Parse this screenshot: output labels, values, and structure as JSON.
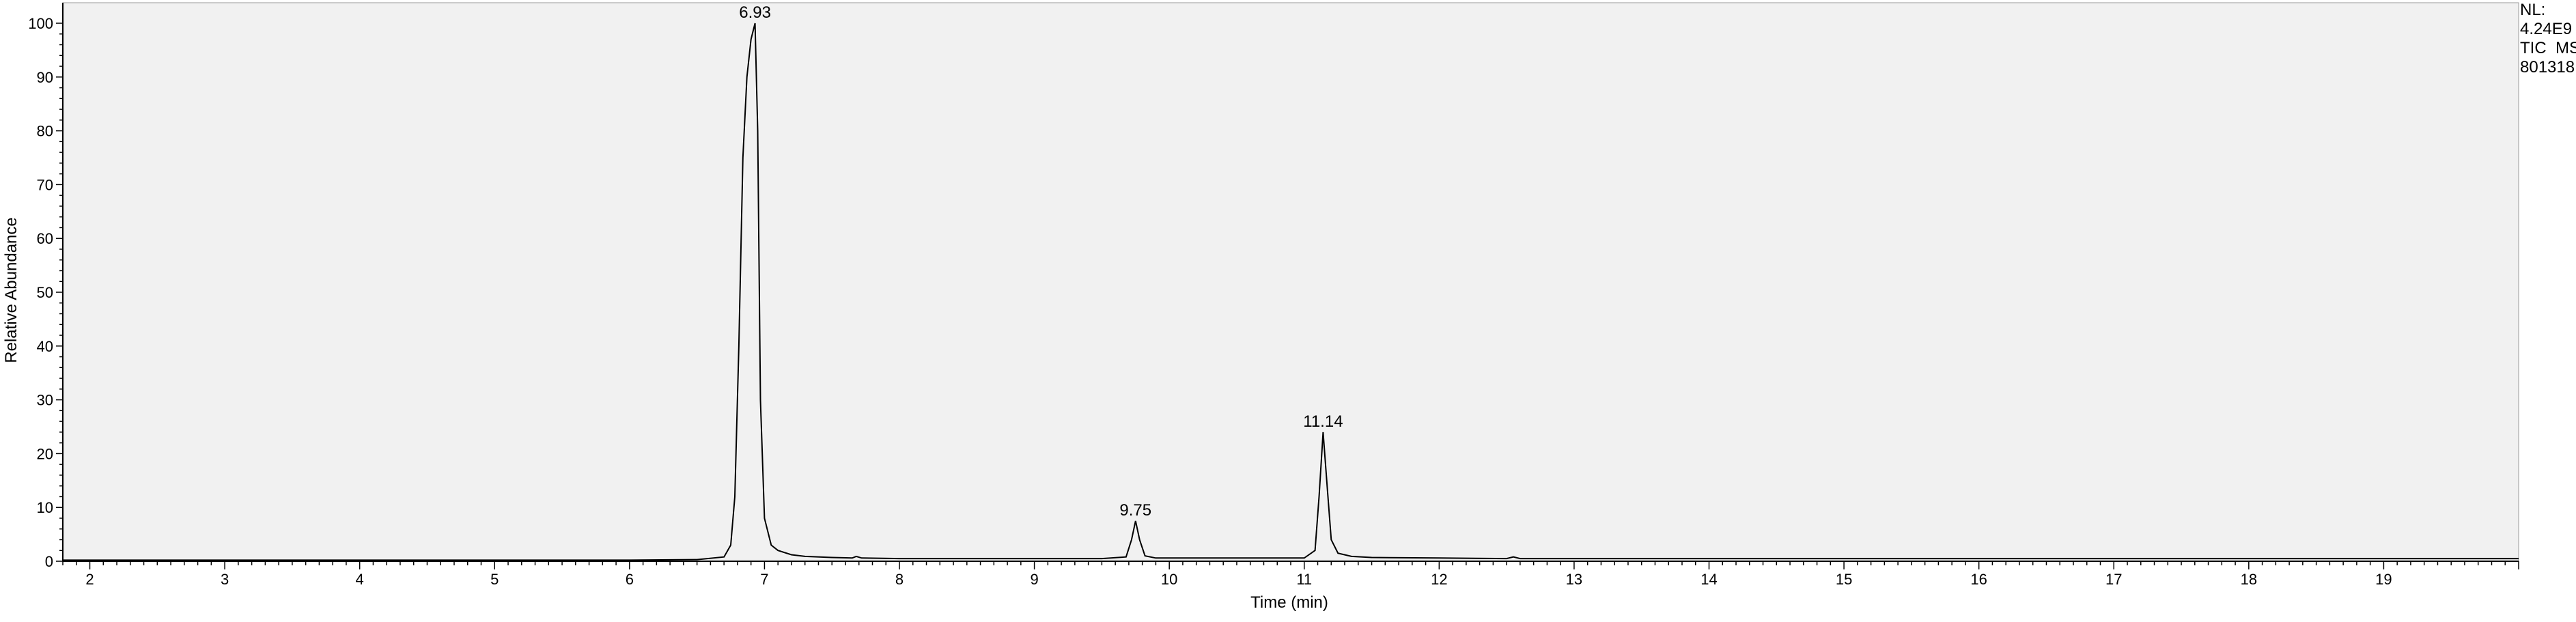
{
  "chart_data": {
    "type": "line",
    "title": "",
    "xlabel": "Time (min)",
    "ylabel": "Relative Abundance",
    "xlim": [
      1.8,
      20.0
    ],
    "ylim": [
      0,
      100
    ],
    "x_ticks": [
      2,
      3,
      4,
      5,
      6,
      7,
      8,
      9,
      10,
      11,
      12,
      13,
      14,
      15,
      16,
      17,
      18,
      19
    ],
    "y_ticks": [
      0,
      10,
      20,
      30,
      40,
      50,
      60,
      70,
      80,
      90,
      100
    ],
    "grid": false,
    "plot_background": "#f1f1f1",
    "line_color": "#000000",
    "info_box": [
      "NL:",
      "4.24E9",
      "TIC  MS",
      "801318"
    ],
    "peaks": [
      {
        "rt": 6.93,
        "label": "6.93",
        "abundance": 100
      },
      {
        "rt": 9.75,
        "label": "9.75",
        "abundance": 7.5
      },
      {
        "rt": 11.14,
        "label": "11.14",
        "abundance": 24
      }
    ],
    "series": [
      {
        "x": [
          1.8,
          3.0,
          4.0,
          5.0,
          6.0,
          6.5,
          6.7,
          6.75,
          6.78,
          6.81,
          6.84,
          6.87,
          6.9,
          6.93,
          6.95,
          6.97,
          7.0,
          7.05,
          7.1,
          7.2,
          7.3,
          7.5,
          7.65,
          7.68,
          7.72,
          8.0,
          8.5,
          9.0,
          9.5,
          9.68,
          9.72,
          9.75,
          9.78,
          9.82,
          9.9,
          10.0,
          10.5,
          11.0,
          11.08,
          11.11,
          11.14,
          11.17,
          11.2,
          11.25,
          11.35,
          11.5,
          12.0,
          12.5,
          12.55,
          12.6,
          13.0,
          14.0,
          15.0,
          16.0,
          17.0,
          18.0,
          19.0,
          20.0
        ],
        "y": [
          0.2,
          0.2,
          0.2,
          0.2,
          0.2,
          0.3,
          0.8,
          3,
          12,
          40,
          75,
          90,
          97,
          100,
          80,
          30,
          8,
          3,
          2,
          1.2,
          0.9,
          0.7,
          0.6,
          0.9,
          0.6,
          0.5,
          0.5,
          0.5,
          0.5,
          0.8,
          4,
          7.5,
          4,
          1,
          0.6,
          0.6,
          0.6,
          0.6,
          2,
          12,
          24,
          14,
          4,
          1.5,
          0.9,
          0.7,
          0.6,
          0.5,
          0.8,
          0.5,
          0.5,
          0.5,
          0.5,
          0.5,
          0.5,
          0.5,
          0.5,
          0.5
        ]
      }
    ]
  }
}
